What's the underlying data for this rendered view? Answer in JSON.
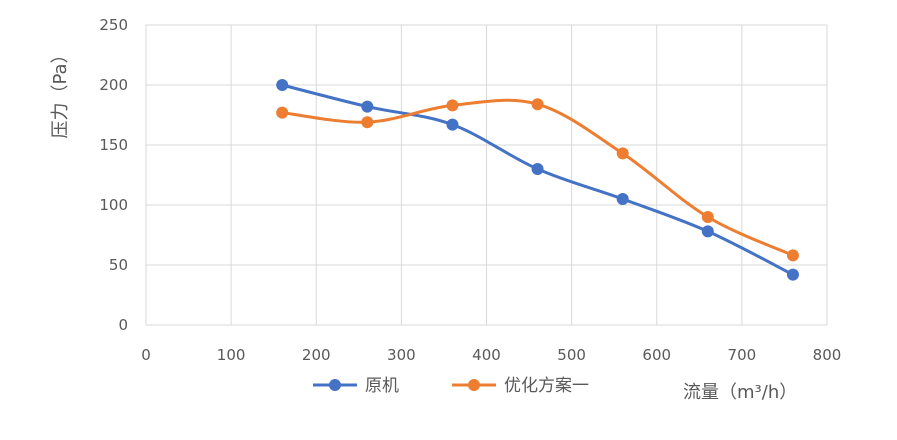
{
  "chart_data": {
    "type": "line",
    "title": "",
    "xlabel": "流量（m³/h）",
    "ylabel": "压力（Pa）",
    "xlim": [
      0,
      800
    ],
    "ylim": [
      0,
      250
    ],
    "xticks": [
      "0",
      "100",
      "200",
      "300",
      "400",
      "500",
      "600",
      "700",
      "800"
    ],
    "yticks": [
      "0",
      "50",
      "100",
      "150",
      "200",
      "250"
    ],
    "grid": true,
    "smooth": true,
    "legend_position": "bottom",
    "series": [
      {
        "name": "原机",
        "color": "#4472c4",
        "x": [
          160,
          260,
          360,
          460,
          560,
          660,
          760
        ],
        "y": [
          200,
          182,
          167,
          130,
          105,
          78,
          42
        ]
      },
      {
        "name": "优化方案一",
        "color": "#ed7d31",
        "x": [
          160,
          260,
          360,
          460,
          560,
          660,
          760
        ],
        "y": [
          177,
          169,
          183,
          184,
          143,
          90,
          58
        ]
      }
    ]
  }
}
